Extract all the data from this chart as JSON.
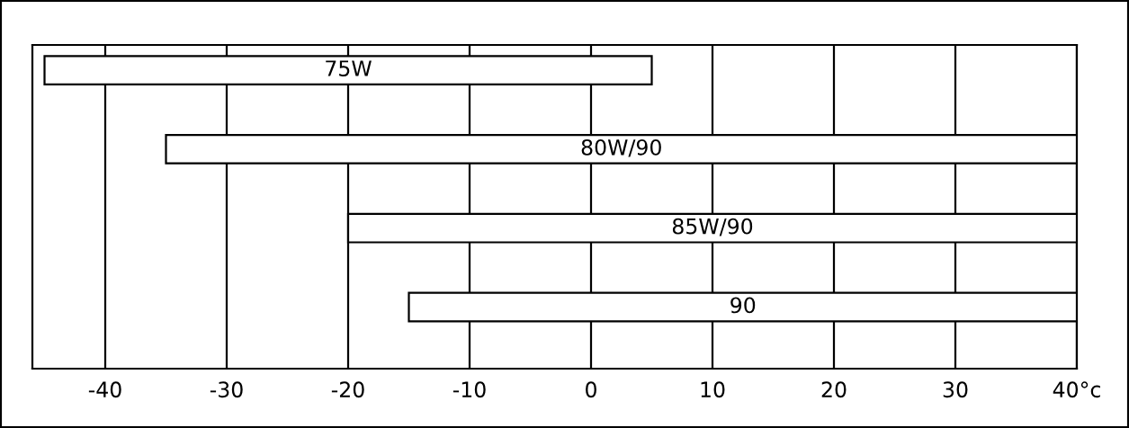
{
  "chart_data": {
    "type": "bar",
    "orientation": "horizontal",
    "categories": [
      "75W",
      "80W/90",
      "85W/90",
      "90"
    ],
    "base": [
      -45,
      -35,
      -20,
      -15
    ],
    "values": [
      50,
      75,
      60,
      55
    ],
    "color": "#ffffff",
    "xlim": [
      -46,
      40
    ],
    "xticks": [
      -40,
      -30,
      -20,
      -10,
      0,
      10,
      20,
      30,
      {
        "value": 40,
        "label": "40°c"
      }
    ],
    "grid": "x",
    "tick_labels": "x"
  }
}
